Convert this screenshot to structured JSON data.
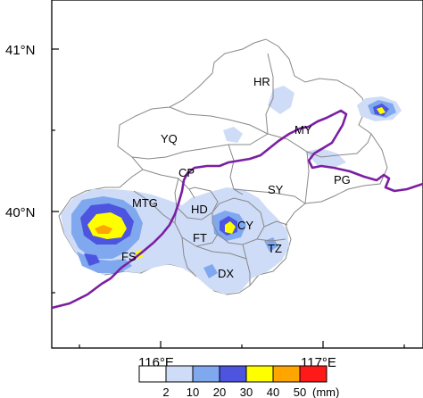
{
  "map": {
    "axes": {
      "y_ticks": [
        "41°N",
        "40°N"
      ],
      "x_ticks": [
        "116°E",
        "117°E"
      ]
    },
    "districts": [
      "HR",
      "MY",
      "YQ",
      "CP",
      "PG",
      "SY",
      "MTG",
      "HD",
      "CY",
      "FT",
      "FS",
      "TZ",
      "DX"
    ],
    "legend": {
      "unit": "(mm)",
      "levels": [
        "2",
        "10",
        "20",
        "30",
        "40",
        "50"
      ],
      "colors": [
        "#ffffff",
        "#cfdcf7",
        "#7fa8ef",
        "#4d55e0",
        "#ffff00",
        "#ffa500",
        "#ff1a1a"
      ]
    },
    "colors": {
      "boundary": "#888888",
      "frame": "#000000",
      "contour_line": "#7b1fa2"
    }
  }
}
